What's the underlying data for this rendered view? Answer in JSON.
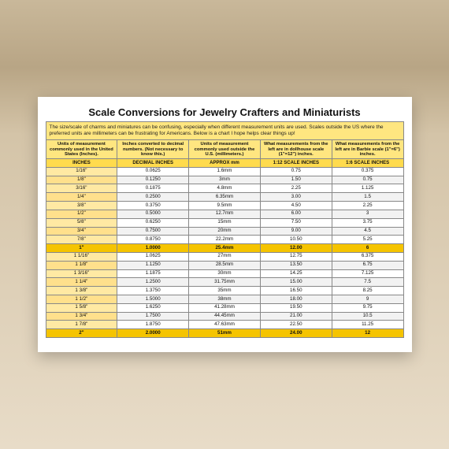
{
  "title": "Scale Conversions for Jewelry Crafters and Miniaturists",
  "description": "The size/scale of charms and miniatures can be confusing, especially when different measurement units are used. Scales outside the US where the preferred units are millimeters can be frustrating for Americans. Below is a chart I hope helps clear things up!",
  "headers": [
    "Units of measurement commonly used in the United States (Inches).",
    "Inches converted to decimal numbers. (Not necessary to know this.)",
    "Units of measurement commonly used outside the U.S. (millimeters.)",
    "What measurements from the left are in dollhouse scale (1\"=12\") inches.",
    "What measurements from the left are in Barbie scale (1\"=6\") inches."
  ],
  "subheaders": [
    "INCHES",
    "DECIMAL INCHES",
    "APPROX mm",
    "1:12 SCALE INCHES",
    "1:6 SCALE INCHES"
  ],
  "rows": [
    {
      "c": [
        "1/16\"",
        "0.0625",
        "1.6mm",
        "0.75",
        "0.375"
      ],
      "m": false
    },
    {
      "c": [
        "1/8\"",
        "0.1250",
        "3mm",
        "1.50",
        "0.75"
      ],
      "m": false
    },
    {
      "c": [
        "3/16\"",
        "0.1875",
        "4.8mm",
        "2.25",
        "1.125"
      ],
      "m": false
    },
    {
      "c": [
        "1/4\"",
        "0.2500",
        "6.35mm",
        "3.00",
        "1.5"
      ],
      "m": false
    },
    {
      "c": [
        "3/8\"",
        "0.3750",
        "9.5mm",
        "4.50",
        "2.25"
      ],
      "m": false
    },
    {
      "c": [
        "1/2\"",
        "0.5000",
        "12.7mm",
        "6.00",
        "3"
      ],
      "m": false
    },
    {
      "c": [
        "5/8\"",
        "0.6250",
        "15mm",
        "7.50",
        "3.75"
      ],
      "m": false
    },
    {
      "c": [
        "3/4\"",
        "0.7500",
        "20mm",
        "9.00",
        "4.5"
      ],
      "m": false
    },
    {
      "c": [
        "7/8\"",
        "0.8750",
        "22.2mm",
        "10.50",
        "5.25"
      ],
      "m": false
    },
    {
      "c": [
        "1\"",
        "1.0000",
        "25.4mm",
        "12.00",
        "6"
      ],
      "m": true
    },
    {
      "c": [
        "1 1/16\"",
        "1.0625",
        "27mm",
        "12.75",
        "6.375"
      ],
      "m": false
    },
    {
      "c": [
        "1 1/8\"",
        "1.1250",
        "28.5mm",
        "13.50",
        "6.75"
      ],
      "m": false
    },
    {
      "c": [
        "1 3/16\"",
        "1.1875",
        "30mm",
        "14.25",
        "7.125"
      ],
      "m": false
    },
    {
      "c": [
        "1 1/4\"",
        "1.2500",
        "31.75mm",
        "15.00",
        "7.5"
      ],
      "m": false
    },
    {
      "c": [
        "1 3/8\"",
        "1.3750",
        "35mm",
        "16.50",
        "8.25"
      ],
      "m": false
    },
    {
      "c": [
        "1 1/2\"",
        "1.5000",
        "38mm",
        "18.00",
        "9"
      ],
      "m": false
    },
    {
      "c": [
        "1 5/8\"",
        "1.6250",
        "41.28mm",
        "19.50",
        "9.75"
      ],
      "m": false
    },
    {
      "c": [
        "1 3/4\"",
        "1.7500",
        "44.45mm",
        "21.00",
        "10.5"
      ],
      "m": false
    },
    {
      "c": [
        "1 7/8\"",
        "1.8750",
        "47.63mm",
        "22.50",
        "11.25"
      ],
      "m": false
    },
    {
      "c": [
        "2\"",
        "2.0000",
        "51mm",
        "24.00",
        "12"
      ],
      "m": true
    }
  ],
  "colors": {
    "header_bg": "#ffe680",
    "subhead_bg": "#ffdb4d",
    "milestone_bg": "#f5c400",
    "first_col_bg": "#ffe9a3",
    "alt_row_bg": "#f2f2f2",
    "border": "#888888",
    "card_bg": "#ffffff"
  }
}
